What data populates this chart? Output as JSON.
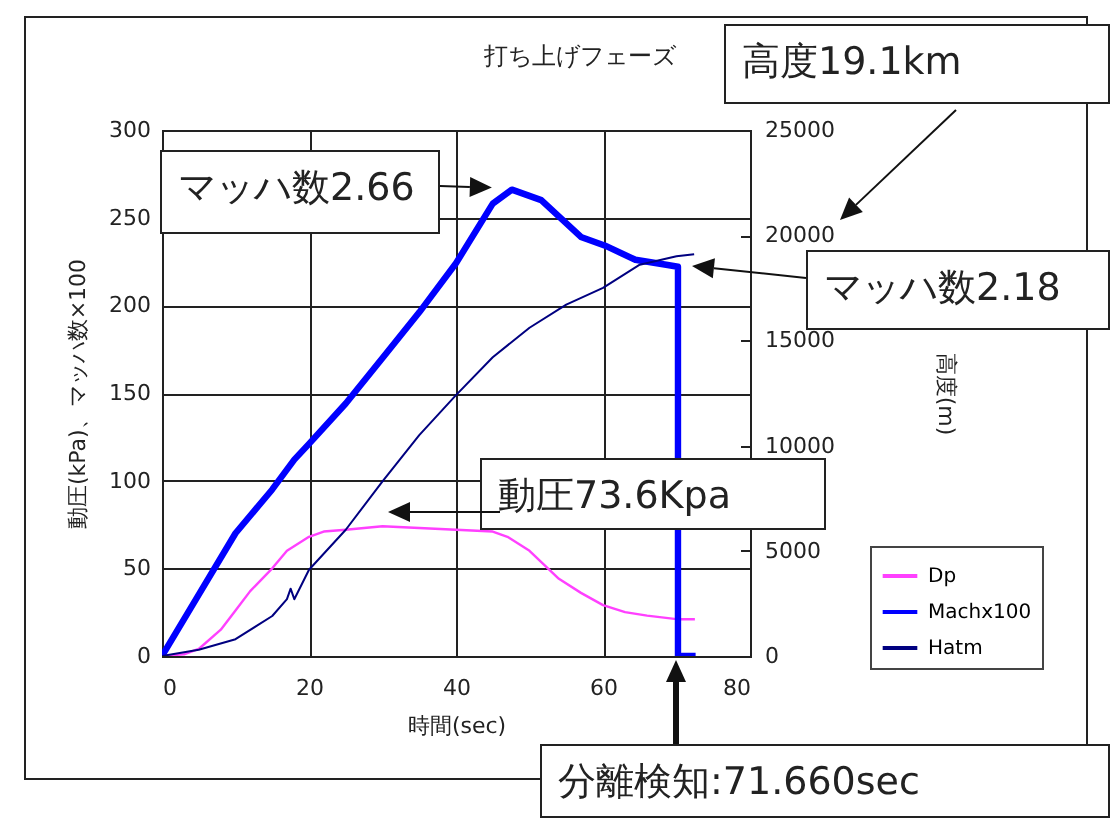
{
  "chart_data": {
    "type": "line",
    "title": "打ち上げフェーズ",
    "xlabel": "時間(sec)",
    "ylabel": "動圧(kPa)、マッハ数×100",
    "y2label": "高度(m)",
    "xlim": [
      0,
      80
    ],
    "xticks": [
      0,
      20,
      40,
      60,
      80
    ],
    "ylim": [
      0,
      300
    ],
    "yticks": [
      0,
      50,
      100,
      150,
      200,
      250,
      300
    ],
    "y2lim": [
      0,
      25000
    ],
    "y2ticks": [
      0,
      {
        "value": 5000,
        "label": "5000"
      },
      {
        "value": 10000,
        "label": "10000"
      },
      {
        "value": 15000,
        "label": "15000"
      },
      {
        "value": 20000,
        "label": "20000"
      },
      {
        "value": 25000,
        "label": "25000"
      }
    ],
    "grid": true,
    "legend": "right",
    "series": [
      {
        "name": "Dp",
        "color": "#ff40ff",
        "x": [
          0,
          3,
          5,
          8,
          10,
          12,
          15,
          17,
          20,
          22,
          25,
          30,
          35,
          40,
          45,
          47,
          50,
          54,
          57,
          60,
          63,
          66,
          70,
          72.5
        ],
        "values": [
          0,
          1,
          4,
          15,
          26,
          37,
          50,
          60,
          68,
          71,
          72,
          74,
          73,
          72,
          71,
          68,
          60,
          44,
          36,
          29,
          25,
          23,
          21,
          21
        ]
      },
      {
        "name": "Machx100",
        "color": "#0000ff",
        "x": [
          0,
          5,
          10,
          15,
          18,
          20,
          25,
          30,
          35,
          40,
          45,
          47.6,
          51.6,
          57,
          60.3,
          64.4,
          68.8,
          70.2,
          70.2,
          72.6
        ],
        "values": [
          0,
          35,
          70,
          95,
          112,
          121,
          144,
          170,
          196,
          224,
          258,
          266,
          260,
          239,
          234,
          226,
          223,
          222,
          0,
          0
        ]
      },
      {
        "name": "Hatm",
        "color": "#000080",
        "axis": "y2",
        "x": [
          0,
          5,
          10,
          15,
          17,
          17.5,
          18,
          20,
          25,
          30,
          35,
          40,
          45,
          50,
          55,
          60,
          65,
          70,
          72.4
        ],
        "values": [
          0,
          300,
          800,
          1900,
          2700,
          3200,
          2700,
          4100,
          6000,
          8300,
          10500,
          12400,
          14200,
          15600,
          16700,
          17500,
          18600,
          19000,
          19100
        ]
      }
    ],
    "annotations": [
      "高度19.1km",
      {
        "text": "マッハ数2.66",
        "x": 47.6,
        "y": 266
      },
      "マッハ数2.18",
      "動圧73.6Kpa",
      "分離検知:71.660sec"
    ]
  }
}
